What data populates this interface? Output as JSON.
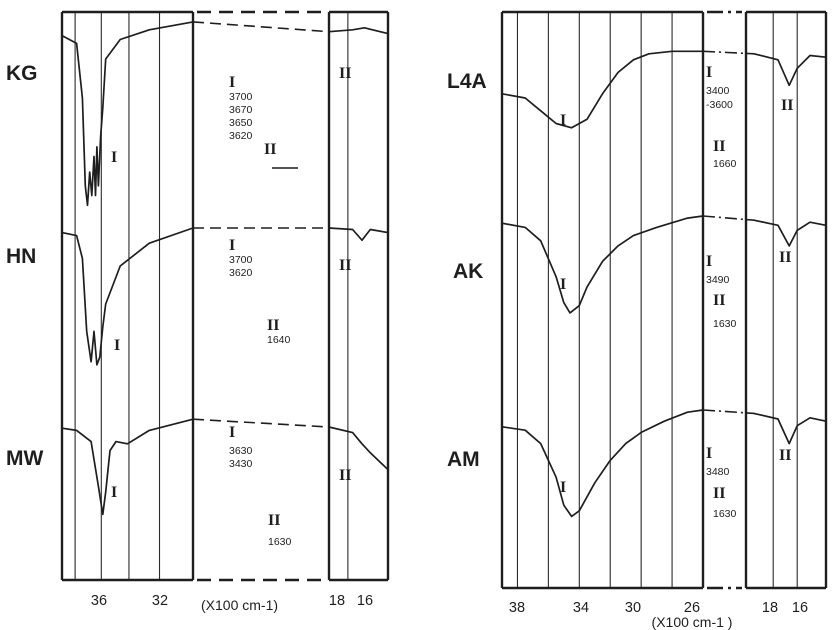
{
  "chart_data": [
    {
      "type": "line",
      "title": "",
      "xlabel": "(X100 cm-1)",
      "ylabel": "",
      "grid": true,
      "x_tick_labels": [
        "36",
        "32",
        "18",
        "16"
      ],
      "series": [
        {
          "name": "KG",
          "band_I": {
            "label": "I",
            "wavenumbers": [
              "3700",
              "3670",
              "3650",
              "3620"
            ]
          },
          "band_II": {
            "label": "II",
            "wavenumbers": []
          },
          "x": [
            39.0,
            38.0,
            37.6,
            37.4,
            37.25,
            37.1,
            36.95,
            36.8,
            36.7,
            36.6,
            36.5,
            36.35,
            36.2,
            36.0,
            35.0,
            33.0,
            30.0,
            19.0,
            17.0,
            16.0,
            14.0
          ],
          "y": [
            0.92,
            0.88,
            0.6,
            0.15,
            0.05,
            0.22,
            0.1,
            0.3,
            0.1,
            0.35,
            0.15,
            0.4,
            0.55,
            0.8,
            0.9,
            0.95,
            0.99,
            0.94,
            0.95,
            0.96,
            0.93
          ]
        },
        {
          "name": "HN",
          "band_I": {
            "label": "I",
            "wavenumbers": [
              "3700",
              "3620"
            ]
          },
          "band_II": {
            "label": "II",
            "wavenumbers": [
              "1640"
            ]
          },
          "x": [
            39.0,
            38.0,
            37.6,
            37.3,
            37.0,
            36.8,
            36.6,
            36.4,
            36.2,
            36.0,
            35.0,
            33.0,
            30.0,
            19.0,
            17.0,
            16.2,
            15.5,
            14.0
          ],
          "y": [
            0.97,
            0.95,
            0.8,
            0.32,
            0.12,
            0.32,
            0.1,
            0.15,
            0.35,
            0.5,
            0.75,
            0.9,
            1.0,
            1.0,
            0.99,
            0.92,
            0.99,
            0.97
          ]
        },
        {
          "name": "MW",
          "band_I": {
            "label": "I",
            "wavenumbers": [
              "3630",
              "3430"
            ]
          },
          "band_II": {
            "label": "II",
            "wavenumbers": [
              "1630"
            ]
          },
          "x": [
            39.0,
            38.0,
            37.0,
            36.5,
            36.2,
            36.0,
            35.7,
            35.3,
            34.5,
            33.0,
            30.0,
            19.0,
            17.0,
            16.2,
            15.5,
            14.0
          ],
          "y": [
            0.82,
            0.8,
            0.7,
            0.3,
            0.05,
            0.25,
            0.62,
            0.7,
            0.68,
            0.8,
            0.9,
            0.83,
            0.78,
            0.68,
            0.6,
            0.45
          ]
        }
      ]
    },
    {
      "type": "line",
      "title": "",
      "xlabel": "(X100 cm-1 )",
      "ylabel": "",
      "grid": true,
      "x_tick_labels": [
        "38",
        "34",
        "30",
        "26",
        "18",
        "16"
      ],
      "series": [
        {
          "name": "L4A",
          "band_I": {
            "label": "I",
            "wavenumbers": [
              "3400",
              "-3600"
            ]
          },
          "band_II": {
            "label": "II",
            "wavenumbers": [
              "1660"
            ]
          },
          "x": [
            39.0,
            37.5,
            36.5,
            35.5,
            34.5,
            33.5,
            32.5,
            31.5,
            30.5,
            29.5,
            28.0,
            26.0,
            18.5,
            17.0,
            16.3,
            15.8,
            15.0,
            14.0
          ],
          "y": [
            0.45,
            0.4,
            0.25,
            0.1,
            0.05,
            0.15,
            0.45,
            0.7,
            0.85,
            0.92,
            0.95,
            0.95,
            0.92,
            0.85,
            0.55,
            0.75,
            0.9,
            0.88
          ]
        },
        {
          "name": "AK",
          "band_I": {
            "label": "I",
            "wavenumbers": [
              "3490"
            ]
          },
          "band_II": {
            "label": "II",
            "wavenumbers": [
              "1630"
            ]
          },
          "x": [
            39.0,
            37.5,
            36.5,
            35.5,
            35.0,
            34.6,
            34.0,
            33.5,
            32.5,
            31.5,
            30.5,
            29.0,
            27.0,
            26.0,
            18.5,
            17.0,
            16.3,
            15.8,
            15.0,
            14.0
          ],
          "y": [
            0.92,
            0.88,
            0.75,
            0.4,
            0.15,
            0.05,
            0.12,
            0.3,
            0.55,
            0.7,
            0.8,
            0.88,
            0.97,
            0.99,
            0.95,
            0.9,
            0.7,
            0.85,
            0.93,
            0.9
          ]
        },
        {
          "name": "AM",
          "band_I": {
            "label": "I",
            "wavenumbers": [
              "3480"
            ]
          },
          "band_II": {
            "label": "II",
            "wavenumbers": [
              "1630"
            ]
          },
          "x": [
            39.0,
            37.5,
            36.5,
            35.5,
            35.0,
            34.5,
            34.0,
            33.0,
            32.0,
            31.0,
            30.0,
            28.5,
            27.0,
            26.0,
            18.5,
            17.0,
            16.3,
            15.8,
            15.0,
            14.0
          ],
          "y": [
            0.85,
            0.82,
            0.7,
            0.4,
            0.15,
            0.05,
            0.1,
            0.35,
            0.55,
            0.7,
            0.8,
            0.9,
            0.98,
            1.0,
            0.97,
            0.92,
            0.7,
            0.86,
            0.93,
            0.9
          ]
        }
      ]
    }
  ]
}
